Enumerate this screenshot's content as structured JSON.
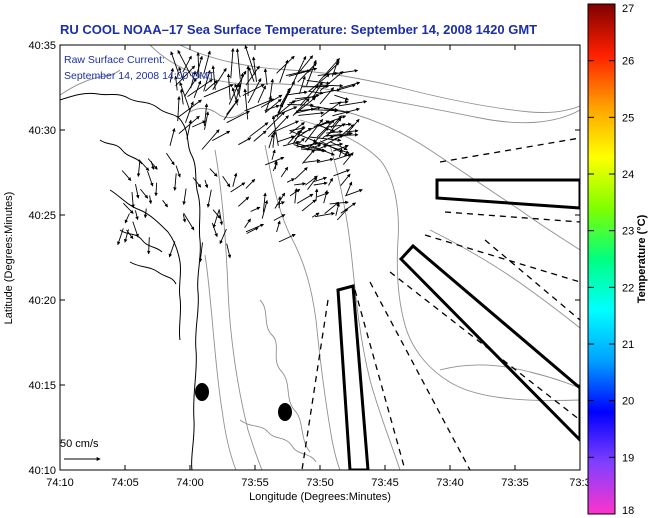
{
  "header": {
    "title": "RU COOL  NOAA–17  Sea Surface Temperature:  September 14, 2008 1420 GMT"
  },
  "overlay": {
    "current_label_line1": "Raw Surface Current:",
    "current_label_line2": "September 14, 2008 14:00 GMT",
    "scale_label": "50 cm/s"
  },
  "axes": {
    "xlabel": "Longitude (Degrees:Minutes)",
    "ylabel": "Latitude (Degrees:Minutes)",
    "x_ticks": [
      "74:10",
      "74:05",
      "74:00",
      "73:55",
      "73:50",
      "73:45",
      "73:40",
      "73:35",
      "73:3"
    ],
    "y_ticks": [
      "40:35",
      "40:30",
      "40:25",
      "40:20",
      "40:15",
      "40:10"
    ]
  },
  "colorbar": {
    "label": "Temperature (°C)",
    "ticks": [
      "27",
      "26",
      "25",
      "24",
      "23",
      "22",
      "21",
      "20",
      "19",
      "18"
    ],
    "min": 18,
    "max": 27,
    "colors": [
      "#ff33cc",
      "#8040ff",
      "#0000ff",
      "#00a0ff",
      "#00ffff",
      "#00ff80",
      "#80ff00",
      "#ffff00",
      "#ffa000",
      "#ff2000",
      "#800000"
    ]
  },
  "styles": {
    "title_color": "#1c2fa8",
    "contour_color": "#909090"
  }
}
